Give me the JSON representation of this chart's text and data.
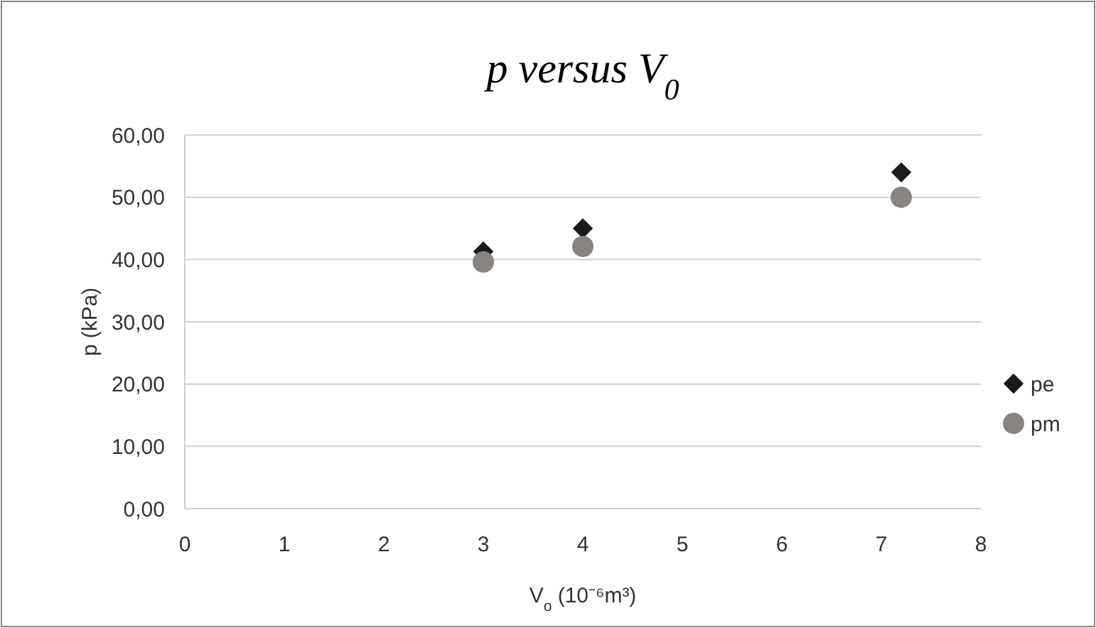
{
  "chart_data": {
    "type": "scatter",
    "title": "p versus V$_{0}$",
    "xlabel": "V$_{o}$ (10⁻⁶m³)",
    "ylabel": "p (kPa)",
    "x": [
      3,
      4,
      7.2
    ],
    "series": [
      {
        "name": "pe",
        "color": "#1a1a1a",
        "marker": "diamond",
        "values": [
          41.3,
          45.0,
          54.0
        ]
      },
      {
        "name": "pm",
        "color": "#8a8480",
        "marker": "circle",
        "values": [
          39.6,
          42.1,
          50.0
        ]
      }
    ],
    "xlim": [
      0,
      8
    ],
    "xticks": [
      0,
      1,
      2,
      3,
      4,
      5,
      6,
      7,
      8
    ],
    "ylim": [
      0,
      60
    ],
    "yticks": [
      {
        "value": 0,
        "label": "0,00"
      },
      {
        "value": 10,
        "label": "10,00"
      },
      {
        "value": 20,
        "label": "20,00"
      },
      {
        "value": 30,
        "label": "30,00"
      },
      {
        "value": 40,
        "label": "40,00"
      },
      {
        "value": 50,
        "label": "50,00"
      },
      {
        "value": 60,
        "label": "60,00"
      }
    ],
    "grid": "y",
    "legend": "right"
  }
}
